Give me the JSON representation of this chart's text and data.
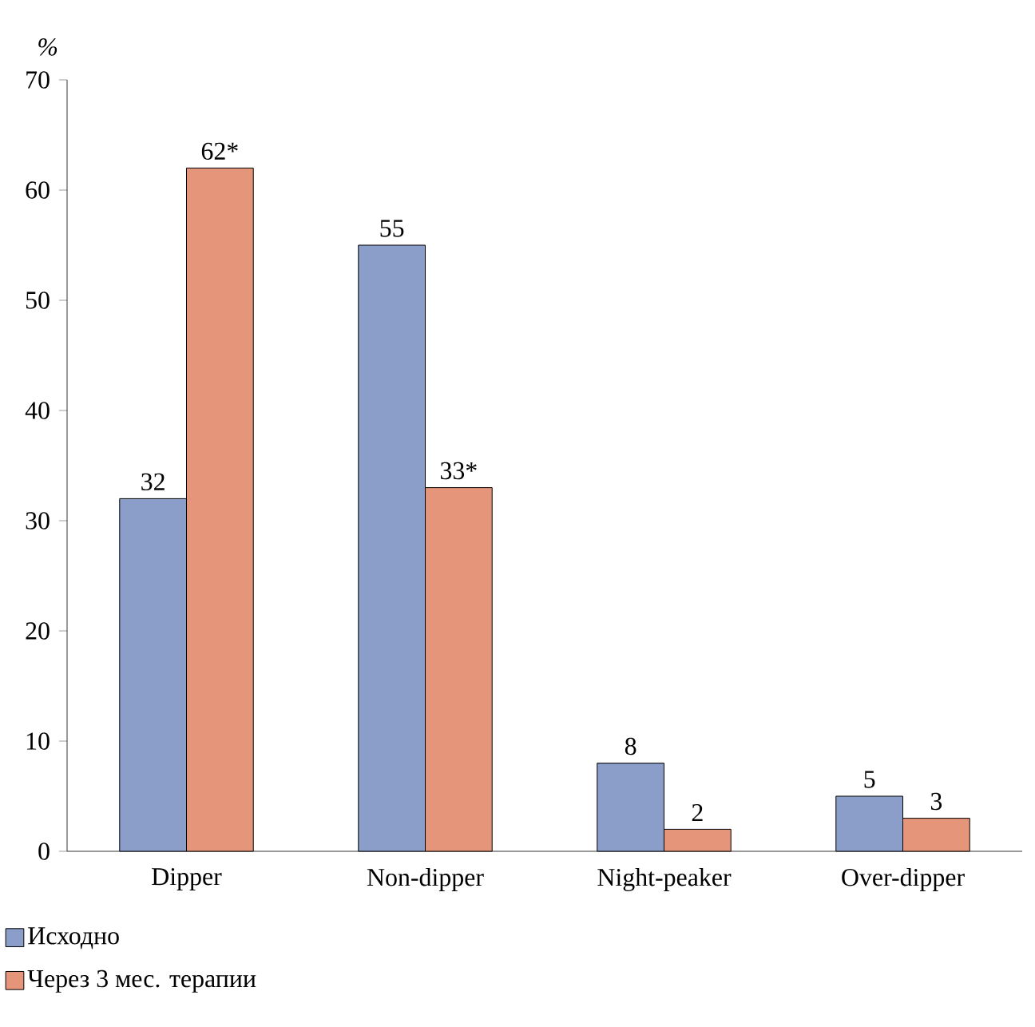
{
  "chart_data": {
    "type": "bar",
    "ylabel": "%",
    "categories": [
      "Dipper",
      "Non-dipper",
      "Night-peaker",
      "Over-dipper"
    ],
    "series": [
      {
        "name": "Исходно",
        "color": "#8b9dc9",
        "values": [
          32,
          55,
          8,
          5
        ],
        "value_labels": [
          "32",
          "55",
          "8",
          "5"
        ]
      },
      {
        "name": "Через 3 мес. терапии",
        "color": "#e5967a",
        "values": [
          62,
          33,
          2,
          3
        ],
        "value_labels": [
          "62*",
          "33*",
          "2",
          "3"
        ]
      }
    ],
    "ylim": [
      0,
      70
    ],
    "yticks": [
      0,
      10,
      20,
      30,
      40,
      50,
      60,
      70
    ],
    "legend": "bottom left",
    "grid": false
  }
}
